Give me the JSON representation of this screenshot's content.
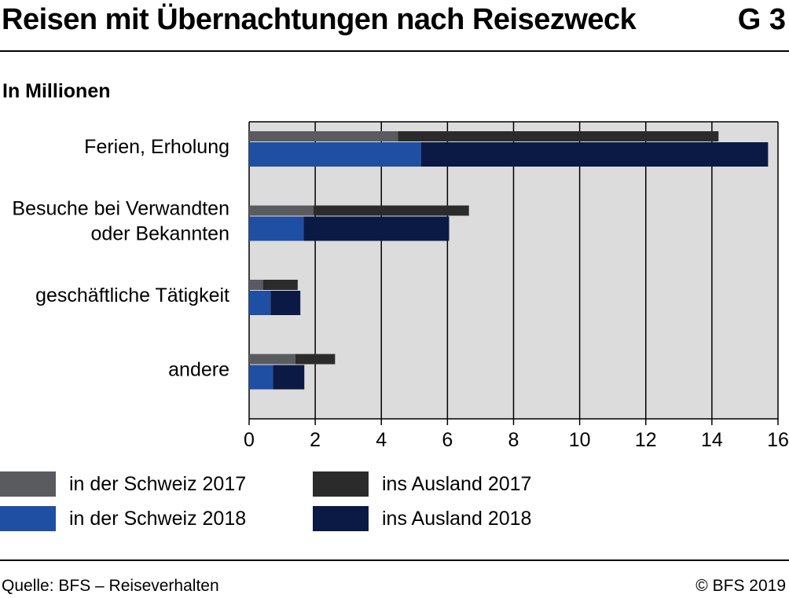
{
  "header": {
    "title": "Reisen mit Übernachtungen nach Reisezweck",
    "figure_number": "G 3"
  },
  "unit_label": "In Millionen",
  "footer": {
    "source": "Quelle: BFS – Reiseverhalten",
    "copyright": "© BFS 2019"
  },
  "colors": {
    "schweiz_2017": "#5a5b5f",
    "ausland_2017": "#2b2b2b",
    "schweiz_2018": "#1f4fa3",
    "ausland_2018": "#0b1a45",
    "plot_background": "#dcdcdc"
  },
  "chart_data": {
    "type": "bar",
    "orientation": "horizontal",
    "stacked": true,
    "title": "Reisen mit Übernachtungen nach Reisezweck",
    "xlabel": "",
    "ylabel": "In Millionen",
    "xlim": [
      0,
      16
    ],
    "xticks": [
      0,
      2,
      4,
      6,
      8,
      10,
      12,
      14,
      16
    ],
    "grid": true,
    "legend_position": "bottom",
    "categories": [
      [
        "Ferien, Erholung"
      ],
      [
        "Besuche bei Verwandten",
        "oder Bekannten"
      ],
      [
        "geschäftliche Tätigkeit"
      ],
      [
        "andere"
      ]
    ],
    "series": [
      {
        "name": "in der Schweiz 2017",
        "year": 2017,
        "stack": "2017",
        "values": [
          4.5,
          1.95,
          0.42,
          1.4
        ]
      },
      {
        "name": "ins Ausland 2017",
        "year": 2017,
        "stack": "2017",
        "values": [
          9.7,
          4.7,
          1.05,
          1.2
        ]
      },
      {
        "name": "in der Schweiz 2018",
        "year": 2018,
        "stack": "2018",
        "values": [
          5.2,
          1.65,
          0.65,
          0.72
        ]
      },
      {
        "name": "ins Ausland 2018",
        "year": 2018,
        "stack": "2018",
        "values": [
          10.5,
          4.4,
          0.9,
          0.95
        ]
      }
    ]
  }
}
